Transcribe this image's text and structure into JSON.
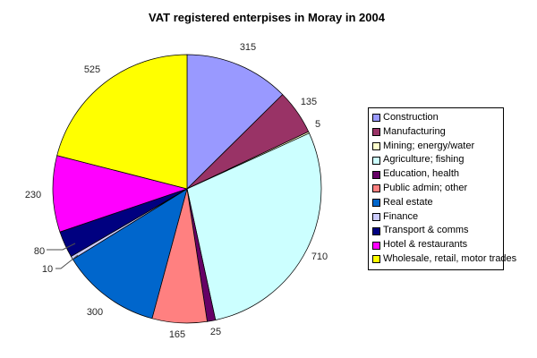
{
  "title": "VAT registered enterpises in Moray in 2004",
  "chart_data": {
    "type": "pie",
    "title": "VAT registered enterpises in Moray in 2004",
    "categories": [
      "Construction",
      "Manufacturing",
      "Mining; energy/water",
      "Agriculture; fishing",
      "Education, health",
      "Public admin; other",
      "Real estate",
      "Finance",
      "Transport & comms",
      "Hotel & restaurants",
      "Wholesale, retail, motor trades"
    ],
    "values": [
      315,
      135,
      5,
      710,
      25,
      165,
      300,
      10,
      80,
      230,
      525
    ],
    "colors": [
      "#9999FF",
      "#993366",
      "#FFFFCC",
      "#CCFFFF",
      "#660066",
      "#FF8080",
      "#0066CC",
      "#CCCCFF",
      "#000080",
      "#FF00FF",
      "#FFFF00"
    ],
    "total": 2500,
    "data_labels": "values",
    "start_angle_deg": 0,
    "direction": "clockwise",
    "legend_position": "right",
    "grid": false
  }
}
